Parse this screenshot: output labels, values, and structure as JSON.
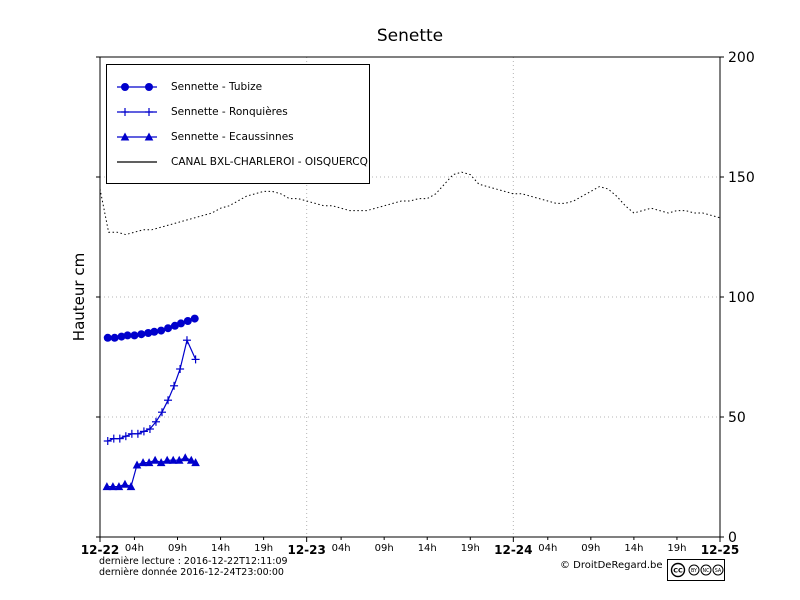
{
  "title": "Senette",
  "ylabel": "Hauteur cm",
  "footer": {
    "last_read": "dernière lecture : 2016-12-22T12:11:09",
    "last_data": "dernière donnée  2016-12-24T23:00:00",
    "copyright": "© DroitDeRegard.be",
    "license": {
      "cc": "CC",
      "by": "BY",
      "nc": "NC",
      "sa": "SA"
    }
  },
  "chart_data": {
    "type": "line",
    "title": "Senette",
    "ylabel": "Hauteur cm",
    "xlabel": "",
    "xlim": [
      0,
      72
    ],
    "ylim": [
      0,
      200
    ],
    "yticks": [
      0,
      50,
      100,
      150,
      200
    ],
    "legend_position": "upper left",
    "x_major_ticks": [
      {
        "h": 0,
        "label": "12-22"
      },
      {
        "h": 24,
        "label": "12-23"
      },
      {
        "h": 48,
        "label": "12-24"
      },
      {
        "h": 72,
        "label": "12-25"
      }
    ],
    "x_minor_ticks": [
      {
        "h": 4,
        "label": "04h"
      },
      {
        "h": 9,
        "label": "09h"
      },
      {
        "h": 14,
        "label": "14h"
      },
      {
        "h": 19,
        "label": "19h"
      },
      {
        "h": 28,
        "label": "04h"
      },
      {
        "h": 33,
        "label": "09h"
      },
      {
        "h": 38,
        "label": "14h"
      },
      {
        "h": 43,
        "label": "19h"
      },
      {
        "h": 52,
        "label": "04h"
      },
      {
        "h": 57,
        "label": "09h"
      },
      {
        "h": 62,
        "label": "14h"
      },
      {
        "h": 67,
        "label": "19h"
      }
    ],
    "grid": {
      "h_values": [
        50,
        100,
        150
      ],
      "v_hours": [
        24,
        48
      ]
    },
    "series": [
      {
        "name": "Sennette - Tubize",
        "color": "#0000cc",
        "marker": "circle",
        "line": "solid",
        "points": [
          [
            0.9,
            83
          ],
          [
            1.7,
            83
          ],
          [
            2.5,
            83.5
          ],
          [
            3.2,
            84
          ],
          [
            4.0,
            84
          ],
          [
            4.8,
            84.5
          ],
          [
            5.6,
            85
          ],
          [
            6.3,
            85.5
          ],
          [
            7.1,
            86
          ],
          [
            7.9,
            87
          ],
          [
            8.7,
            88
          ],
          [
            9.4,
            89
          ],
          [
            10.2,
            90
          ],
          [
            11.0,
            91
          ]
        ]
      },
      {
        "name": "Sennette - Ronquières",
        "color": "#0000cc",
        "marker": "plus",
        "line": "solid",
        "points": [
          [
            0.9,
            40
          ],
          [
            1.6,
            41
          ],
          [
            2.3,
            41
          ],
          [
            3.0,
            42
          ],
          [
            3.7,
            43
          ],
          [
            4.4,
            43
          ],
          [
            5.1,
            44
          ],
          [
            5.8,
            45
          ],
          [
            6.5,
            48
          ],
          [
            7.2,
            52
          ],
          [
            7.9,
            57
          ],
          [
            8.6,
            63
          ],
          [
            9.3,
            70
          ],
          [
            10.1,
            82
          ],
          [
            11.1,
            74
          ]
        ]
      },
      {
        "name": "Sennette - Ecaussinnes",
        "color": "#0000cc",
        "marker": "triangle",
        "line": "solid",
        "points": [
          [
            0.8,
            21
          ],
          [
            1.5,
            21
          ],
          [
            2.2,
            21
          ],
          [
            2.9,
            22
          ],
          [
            3.6,
            21
          ],
          [
            4.3,
            30
          ],
          [
            5.0,
            31
          ],
          [
            5.7,
            31
          ],
          [
            6.4,
            32
          ],
          [
            7.1,
            31
          ],
          [
            7.8,
            32
          ],
          [
            8.5,
            32
          ],
          [
            9.2,
            32
          ],
          [
            9.9,
            33
          ],
          [
            10.6,
            32
          ],
          [
            11.1,
            31
          ]
        ]
      },
      {
        "name": "CANAL BXL-CHARLEROI - OISQUERCQ",
        "color": "#000000",
        "marker": "none",
        "line": "dotted",
        "x_start": 0,
        "x_step": 1,
        "values": [
          145,
          127,
          127,
          126,
          127,
          128,
          128,
          129,
          130,
          131,
          132,
          133,
          134,
          135,
          137,
          138,
          140,
          142,
          143,
          144,
          144,
          143,
          141,
          141,
          140,
          139,
          138,
          138,
          137,
          136,
          136,
          136,
          137,
          138,
          139,
          140,
          140,
          141,
          141,
          143,
          147,
          151,
          152,
          151,
          147,
          146,
          145,
          144,
          143,
          143,
          142,
          141,
          140,
          139,
          139,
          140,
          142,
          144,
          146,
          145,
          142,
          138,
          135,
          136,
          137,
          136,
          135,
          136,
          136,
          135,
          135,
          134,
          133
        ]
      }
    ]
  }
}
